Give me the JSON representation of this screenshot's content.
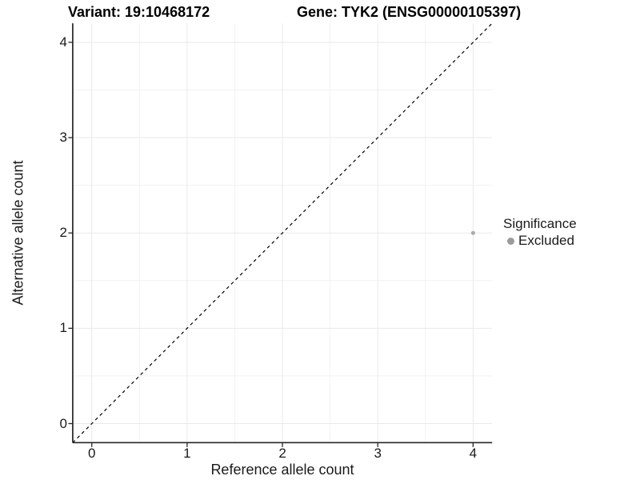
{
  "chart_data": {
    "type": "scatter",
    "titles": {
      "variant": "Variant: 19:10468172",
      "gene": "Gene: TYK2 (ENSG00000105397)"
    },
    "xlabel": "Reference allele count",
    "ylabel": "Alternative allele count",
    "xlim": [
      -0.2,
      4.2
    ],
    "ylim": [
      -0.2,
      4.2
    ],
    "x_ticks": [
      0,
      1,
      2,
      3,
      4
    ],
    "y_ticks": [
      0,
      1,
      2,
      3,
      4
    ],
    "minor_grid_step": 0.5,
    "grid": true,
    "identity_line": {
      "style": "dashed",
      "from": [
        -0.2,
        -0.2
      ],
      "to": [
        4.2,
        4.2
      ],
      "color": "#000000"
    },
    "series": [
      {
        "name": "Excluded",
        "color": "#a9a9a9",
        "points": [
          {
            "x": 4,
            "y": 2
          }
        ],
        "point_radius_px": 2.5
      }
    ],
    "legend": {
      "title": "Significance",
      "position": "right",
      "items": [
        {
          "label": "Excluded",
          "color": "#9b9b9b"
        }
      ]
    },
    "colors": {
      "background": "#ffffff",
      "major_grid": "#e9e9e9",
      "minor_grid": "#f2f2f2",
      "axis_line": "#262626",
      "tick_mark": "#262626",
      "point": "#a9a9a9",
      "identity_line": "#000000"
    }
  }
}
